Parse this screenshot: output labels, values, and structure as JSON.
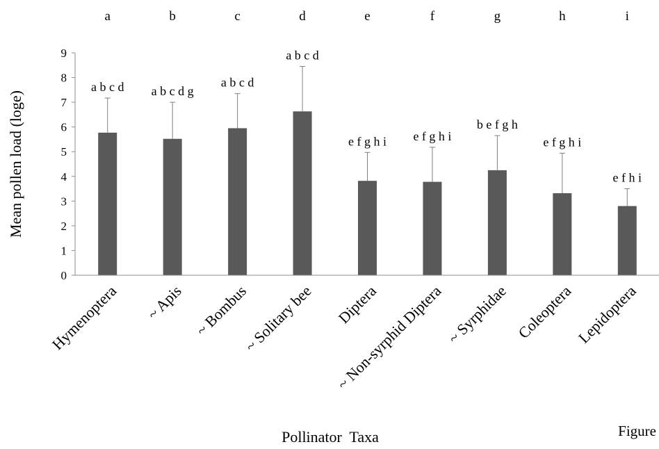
{
  "chart_data": {
    "type": "bar",
    "categories": [
      "Hymenoptera",
      "~ Apis",
      "~ Bombus",
      "~ Solitary bee",
      "Diptera",
      "~ Non-syrphid Diptera",
      "~ Syrphidae",
      "Coleoptera",
      "Lepidoptera"
    ],
    "values": [
      5.77,
      5.52,
      5.95,
      6.63,
      3.82,
      3.78,
      4.25,
      3.32,
      2.8
    ],
    "error_upper": [
      7.17,
      7.0,
      7.35,
      8.45,
      4.97,
      5.18,
      5.65,
      4.94,
      3.5
    ],
    "bar_color": "#595959",
    "top_letters": [
      "a",
      "b",
      "c",
      "d",
      "e",
      "f",
      "g",
      "h",
      "i"
    ],
    "significance_labels": [
      "a b c d",
      "a b c d g",
      "a b c d",
      "a b c d",
      "e f g h i",
      "e f g h i",
      "b e f g h",
      "e f g h i",
      "e f h i"
    ],
    "xlabel": "Pollinator  Taxa",
    "ylabel": "Mean pollen load (loge)",
    "ylim": [
      0,
      9
    ],
    "yticks": [
      "0",
      "1",
      "2",
      "3",
      "4",
      "5",
      "6",
      "7",
      "8",
      "9"
    ],
    "grid": false,
    "figure_label": "Figure"
  }
}
